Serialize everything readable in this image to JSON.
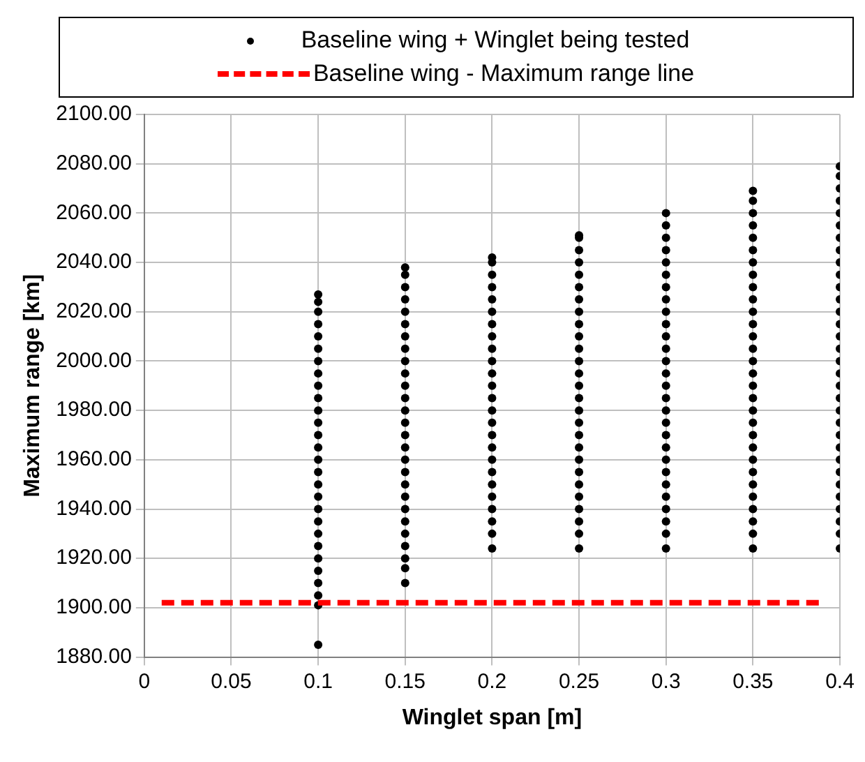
{
  "chart_data": {
    "type": "scatter",
    "xlabel": "Winglet span [m]",
    "ylabel": "Maximum range [km]",
    "xlim": [
      0,
      0.4
    ],
    "xticks": [
      0,
      0.05,
      0.1,
      0.15,
      0.2,
      0.25,
      0.3,
      0.35,
      0.4
    ],
    "ylim": [
      1880,
      2100
    ],
    "yticks": [
      {
        "value": 1880,
        "label": "1880.00"
      },
      {
        "value": 1900,
        "label": "1900.00"
      },
      {
        "value": 1920,
        "label": "1920.00"
      },
      {
        "value": 1940,
        "label": "1940.00"
      },
      {
        "value": 1960,
        "label": "1960.00"
      },
      {
        "value": 1980,
        "label": "1980.00"
      },
      {
        "value": 2000,
        "label": "2000.00"
      },
      {
        "value": 2020,
        "label": "2020.00"
      },
      {
        "value": 2040,
        "label": "2040.00"
      },
      {
        "value": 2060,
        "label": "2060.00"
      },
      {
        "value": 2080,
        "label": "2080.00"
      },
      {
        "value": 2100,
        "label": "2100.00"
      }
    ],
    "grid": true,
    "legend": "top",
    "series": [
      {
        "name": "Baseline wing + Winglet being tested",
        "type": "scatter",
        "marker": "circle",
        "color": "#000000",
        "x": [
          0.1,
          0.1,
          0.1,
          0.1,
          0.1,
          0.1,
          0.1,
          0.1,
          0.1,
          0.1,
          0.1,
          0.1,
          0.1,
          0.1,
          0.1,
          0.1,
          0.1,
          0.1,
          0.1,
          0.1,
          0.1,
          0.1,
          0.1,
          0.1,
          0.1,
          0.1,
          0.1,
          0.1,
          0.15,
          0.15,
          0.15,
          0.15,
          0.15,
          0.15,
          0.15,
          0.15,
          0.15,
          0.15,
          0.15,
          0.15,
          0.15,
          0.15,
          0.15,
          0.15,
          0.15,
          0.15,
          0.15,
          0.15,
          0.15,
          0.15,
          0.15,
          0.15,
          0.15,
          0.15,
          0.15,
          0.2,
          0.2,
          0.2,
          0.2,
          0.2,
          0.2,
          0.2,
          0.2,
          0.2,
          0.2,
          0.2,
          0.2,
          0.2,
          0.2,
          0.2,
          0.2,
          0.2,
          0.2,
          0.2,
          0.2,
          0.2,
          0.2,
          0.2,
          0.2,
          0.2,
          0.25,
          0.25,
          0.25,
          0.25,
          0.25,
          0.25,
          0.25,
          0.25,
          0.25,
          0.25,
          0.25,
          0.25,
          0.25,
          0.25,
          0.25,
          0.25,
          0.25,
          0.25,
          0.25,
          0.25,
          0.25,
          0.25,
          0.25,
          0.25,
          0.25,
          0.25,
          0.25,
          0.3,
          0.3,
          0.3,
          0.3,
          0.3,
          0.3,
          0.3,
          0.3,
          0.3,
          0.3,
          0.3,
          0.3,
          0.3,
          0.3,
          0.3,
          0.3,
          0.3,
          0.3,
          0.3,
          0.3,
          0.3,
          0.3,
          0.3,
          0.3,
          0.3,
          0.3,
          0.3,
          0.3,
          0.35,
          0.35,
          0.35,
          0.35,
          0.35,
          0.35,
          0.35,
          0.35,
          0.35,
          0.35,
          0.35,
          0.35,
          0.35,
          0.35,
          0.35,
          0.35,
          0.35,
          0.35,
          0.35,
          0.35,
          0.35,
          0.35,
          0.35,
          0.35,
          0.35,
          0.35,
          0.35,
          0.35,
          0.35,
          0.35,
          0.4,
          0.4,
          0.4,
          0.4,
          0.4,
          0.4,
          0.4,
          0.4,
          0.4,
          0.4,
          0.4,
          0.4,
          0.4,
          0.4,
          0.4,
          0.4,
          0.4,
          0.4,
          0.4,
          0.4,
          0.4,
          0.4,
          0.4,
          0.4,
          0.4,
          0.4,
          0.4,
          0.4,
          0.4,
          0.4,
          0.4,
          0.4
        ],
        "values": [
          1885,
          1901,
          1905,
          1910,
          1915,
          1920,
          1925,
          1930,
          1935,
          1940,
          1945,
          1950,
          1955,
          1960,
          1965,
          1970,
          1975,
          1980,
          1985,
          1990,
          1995,
          2000,
          2005,
          2010,
          2015,
          2020,
          2024,
          2027,
          1910,
          1916,
          1920,
          1925,
          1930,
          1935,
          1940,
          1945,
          1950,
          1955,
          1960,
          1965,
          1970,
          1975,
          1980,
          1985,
          1990,
          1995,
          2000,
          2005,
          2010,
          2015,
          2020,
          2025,
          2030,
          2035,
          2038,
          1924,
          1930,
          1935,
          1940,
          1945,
          1950,
          1955,
          1960,
          1965,
          1970,
          1975,
          1980,
          1985,
          1990,
          1995,
          2000,
          2005,
          2010,
          2015,
          2020,
          2025,
          2030,
          2035,
          2040,
          2042,
          1924,
          1930,
          1935,
          1940,
          1945,
          1950,
          1955,
          1960,
          1965,
          1970,
          1975,
          1980,
          1985,
          1990,
          1995,
          2000,
          2005,
          2010,
          2015,
          2020,
          2025,
          2030,
          2035,
          2040,
          2045,
          2050,
          2051,
          1924,
          1930,
          1935,
          1940,
          1945,
          1950,
          1955,
          1960,
          1965,
          1970,
          1975,
          1980,
          1985,
          1990,
          1995,
          2000,
          2005,
          2010,
          2015,
          2020,
          2025,
          2030,
          2035,
          2040,
          2045,
          2050,
          2055,
          2060,
          1924,
          1930,
          1935,
          1940,
          1945,
          1950,
          1955,
          1960,
          1965,
          1970,
          1975,
          1980,
          1985,
          1990,
          1995,
          2000,
          2005,
          2010,
          2015,
          2020,
          2025,
          2030,
          2035,
          2040,
          2045,
          2050,
          2055,
          2060,
          2065,
          2069,
          1924,
          1930,
          1935,
          1940,
          1945,
          1950,
          1955,
          1960,
          1965,
          1970,
          1975,
          1980,
          1985,
          1990,
          1995,
          2000,
          2005,
          2010,
          2015,
          2020,
          2025,
          2030,
          2035,
          2040,
          2045,
          2050,
          2055,
          2060,
          2065,
          2070,
          2075,
          2079
        ]
      },
      {
        "name": "Baseline wing - Maximum range line",
        "type": "line",
        "marker": "none",
        "line_style": "dashed",
        "color": "#ff0000",
        "x": [
          0.01,
          0.39
        ],
        "values": [
          1902,
          1902
        ]
      }
    ]
  }
}
